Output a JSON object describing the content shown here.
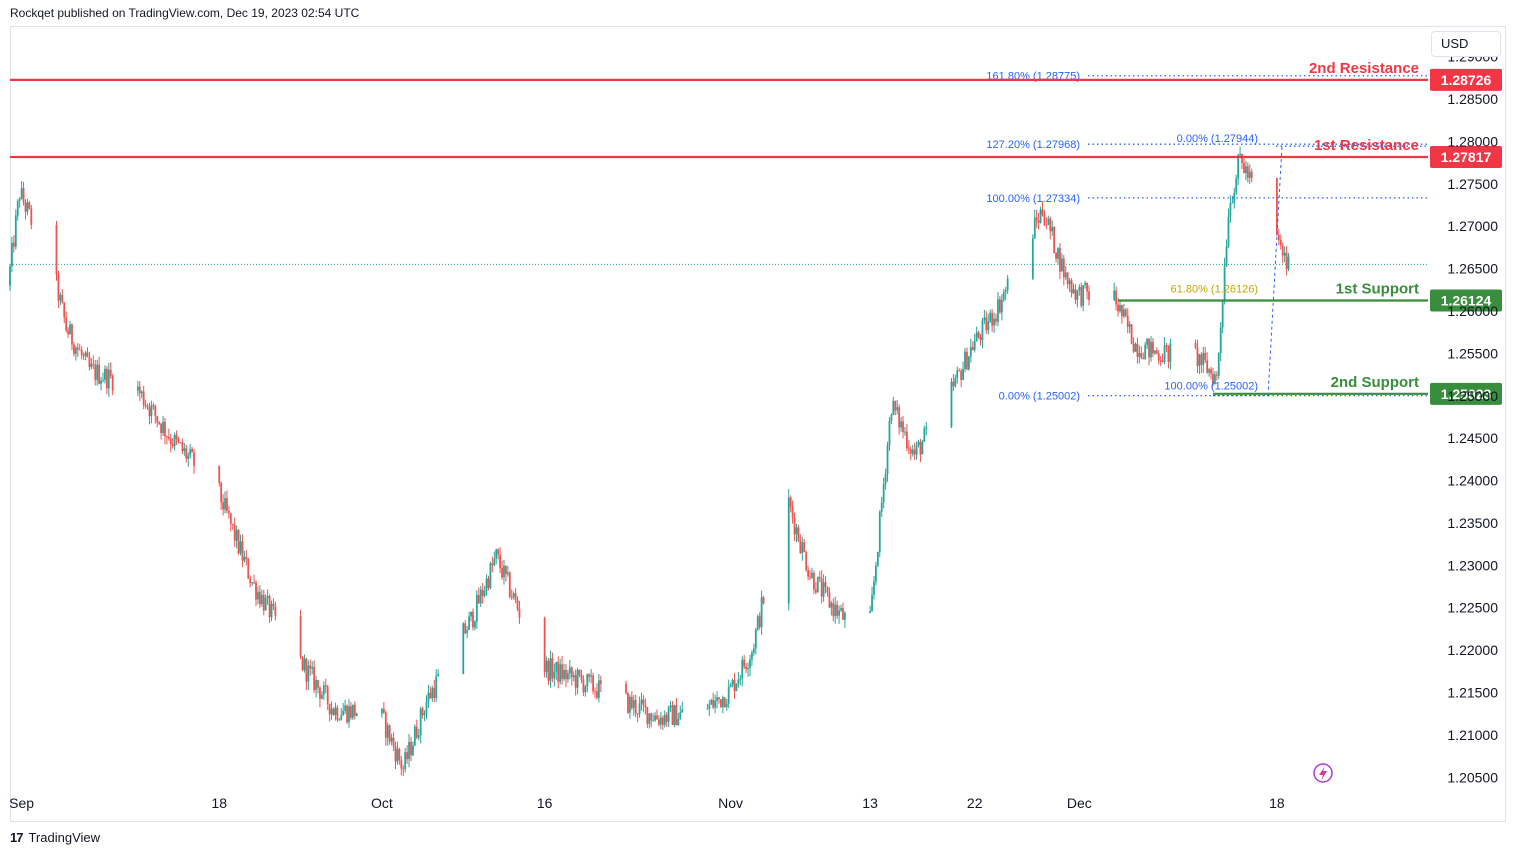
{
  "header": {
    "publisher": "Rockqet published on TradingView.com, Dec 19, 2023 02:54 UTC"
  },
  "currency_button": "USD",
  "footer": {
    "brand": "TradingView",
    "logo_glyph": "17"
  },
  "colors": {
    "up": "#26a69a",
    "down": "#ef5350",
    "resistance": "#f23645",
    "support": "#388e3c",
    "fib": "#2962ff",
    "fib_text": "#2962ff",
    "fib_gold": "#c9a400",
    "last_price": "#26a69a"
  },
  "chart_data": {
    "type": "candlestick",
    "symbol_unit": "USD",
    "ylim": [
      1.2035,
      1.2935
    ],
    "y_ticks": [
      "1.29000",
      "1.28500",
      "1.28000",
      "1.27500",
      "1.27000",
      "1.26500",
      "1.26000",
      "1.25500",
      "1.25000",
      "1.24500",
      "1.24000",
      "1.23500",
      "1.23000",
      "1.22500",
      "1.22000",
      "1.21500",
      "1.21000",
      "1.20500"
    ],
    "x_ticks": [
      "Sep",
      "18",
      "Oct",
      "16",
      "Nov",
      "13",
      "22",
      "Dec",
      "18"
    ],
    "x_tick_dates": [
      "2023-09-01",
      "2023-09-18",
      "2023-10-02",
      "2023-10-16",
      "2023-11-01",
      "2023-11-13",
      "2023-11-22",
      "2023-12-01",
      "2023-12-18"
    ],
    "x_range": [
      "2023-08-31",
      "2023-12-31"
    ],
    "last_price": 1.2655,
    "price_path_dates": [
      "2023-08-31",
      "2023-09-01",
      "2023-09-04",
      "2023-09-05",
      "2023-09-07",
      "2023-09-11",
      "2023-09-14",
      "2023-09-18",
      "2023-09-21",
      "2023-09-25",
      "2023-09-28",
      "2023-10-02",
      "2023-10-04",
      "2023-10-06",
      "2023-10-10",
      "2023-10-12",
      "2023-10-16",
      "2023-10-19",
      "2023-10-23",
      "2023-10-26",
      "2023-10-30",
      "2023-11-01",
      "2023-11-03",
      "2023-11-06",
      "2023-11-08",
      "2023-11-10",
      "2023-11-13",
      "2023-11-15",
      "2023-11-17",
      "2023-11-20",
      "2023-11-22",
      "2023-11-24",
      "2023-11-28",
      "2023-11-30",
      "2023-12-01",
      "2023-12-04",
      "2023-12-06",
      "2023-12-08",
      "2023-12-11",
      "2023-12-13",
      "2023-12-14",
      "2023-12-15",
      "2023-12-18",
      "2023-12-19"
    ],
    "price_path": [
      1.263,
      1.274,
      1.264,
      1.258,
      1.253,
      1.251,
      1.245,
      1.239,
      1.228,
      1.219,
      1.213,
      1.2125,
      1.206,
      1.214,
      1.224,
      1.231,
      1.218,
      1.2165,
      1.214,
      1.212,
      1.213,
      1.215,
      1.22,
      1.238,
      1.229,
      1.225,
      1.221,
      1.249,
      1.243,
      1.25,
      1.256,
      1.26,
      1.272,
      1.264,
      1.262,
      1.262,
      1.256,
      1.255,
      1.255,
      1.252,
      1.272,
      1.278,
      1.269,
      1.2655
    ],
    "levels": [
      {
        "name": "2nd Resistance",
        "price": 1.28726,
        "label": "1.28726",
        "kind": "resistance"
      },
      {
        "name": "1st Resistance",
        "price": 1.27817,
        "label": "1.27817",
        "kind": "resistance"
      },
      {
        "name": "1st Support",
        "price": 1.26124,
        "label": "1.26124",
        "kind": "support"
      },
      {
        "name": "2nd Support",
        "price": 1.25023,
        "label": "1.25023",
        "kind": "support"
      }
    ],
    "fib_ext": [
      {
        "label": "161.80% (1.28775)",
        "price": 1.28775
      },
      {
        "label": "127.20% (1.27968)",
        "price": 1.27968
      },
      {
        "label": "100.00% (1.27334)",
        "price": 1.27334
      },
      {
        "label": "0.00% (1.25002)",
        "price": 1.25002
      }
    ],
    "fib_retr": [
      {
        "label": "0.00% (1.27944)",
        "price": 1.27944
      },
      {
        "label": "61.80% (1.26126)",
        "price": 1.26126
      },
      {
        "label": "100.00% (1.25002)",
        "price": 1.25002
      }
    ]
  }
}
